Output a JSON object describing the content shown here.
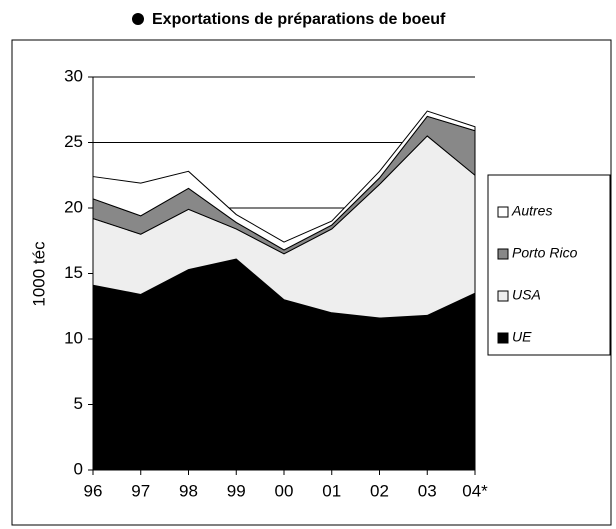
{
  "chart_data": {
    "type": "stacked-area",
    "title": "Exportations de préparations de boeuf",
    "y_label": "1000 téc",
    "categories": [
      "96",
      "97",
      "98",
      "99",
      "00",
      "01",
      "02",
      "03",
      "04*"
    ],
    "series": [
      {
        "name": "UE",
        "color": "#000000",
        "values": [
          14.1,
          13.4,
          15.3,
          16.1,
          13.0,
          12.0,
          11.6,
          11.8,
          13.5
        ]
      },
      {
        "name": "USA",
        "color": "#eeeeee",
        "values": [
          5.1,
          4.6,
          4.6,
          2.3,
          3.5,
          6.4,
          10.2,
          13.7,
          9.0
        ]
      },
      {
        "name": "Porto Rico",
        "color": "#888888",
        "values": [
          1.5,
          1.4,
          1.6,
          0.5,
          0.3,
          0.3,
          0.5,
          1.5,
          3.4
        ]
      },
      {
        "name": "Autres",
        "color": "#ffffff",
        "values": [
          1.7,
          2.5,
          1.3,
          0.6,
          0.6,
          0.3,
          0.5,
          0.4,
          0.3
        ]
      }
    ],
    "ylim": [
      0,
      30
    ],
    "yticks": [
      0,
      5,
      10,
      15,
      20,
      25,
      30
    ],
    "grid": true,
    "legend": "right"
  }
}
